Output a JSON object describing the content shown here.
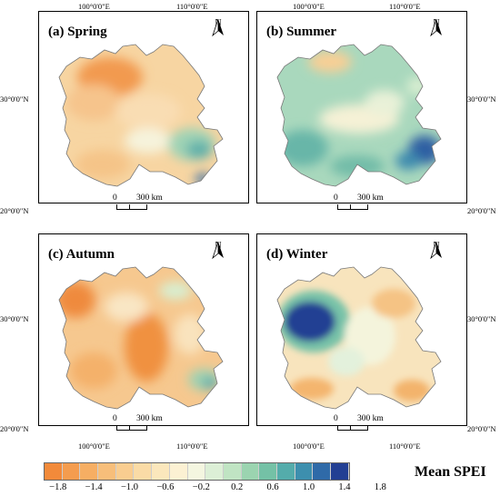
{
  "panels": [
    {
      "id": "a",
      "title": "(a) Spring"
    },
    {
      "id": "b",
      "title": "(b) Summer"
    },
    {
      "id": "c",
      "title": "(c) Autumn"
    },
    {
      "id": "d",
      "title": "(d) Winter"
    }
  ],
  "north_label": "N",
  "scale": {
    "zero": "0",
    "dist": "300",
    "unit": "km",
    "label_text": "300  km"
  },
  "axes": {
    "lon1": "100°0'0\"E",
    "lon2": "110°0'0\"E",
    "lat1": "30°0'0\"N",
    "lat2": "20°0'0\"N"
  },
  "legend": {
    "title": "Mean SPEI",
    "ticks": [
      "−1.8",
      "−1.4",
      "−1.0",
      "−0.6",
      "−0.2",
      "0.2",
      "0.6",
      "1.0",
      "1.4",
      "1.8"
    ],
    "colors": [
      "#f28a3a",
      "#f49c4e",
      "#f6ae63",
      "#f7be7a",
      "#f9cd90",
      "#fadba6",
      "#fbe7bc",
      "#fcf1d3",
      "#f4f6e0",
      "#dcefd6",
      "#c0e4c3",
      "#9bd4b0",
      "#74c1a6",
      "#54acab",
      "#3d8fae",
      "#2f6aa8",
      "#223f93"
    ],
    "values": [
      -2.0,
      -1.8,
      -1.6,
      -1.4,
      -1.2,
      -1.0,
      -0.8,
      -0.6,
      -0.4,
      -0.2,
      0,
      0.2,
      0.4,
      0.6,
      0.8,
      1.0,
      1.2,
      1.4,
      1.6,
      1.8
    ]
  }
}
